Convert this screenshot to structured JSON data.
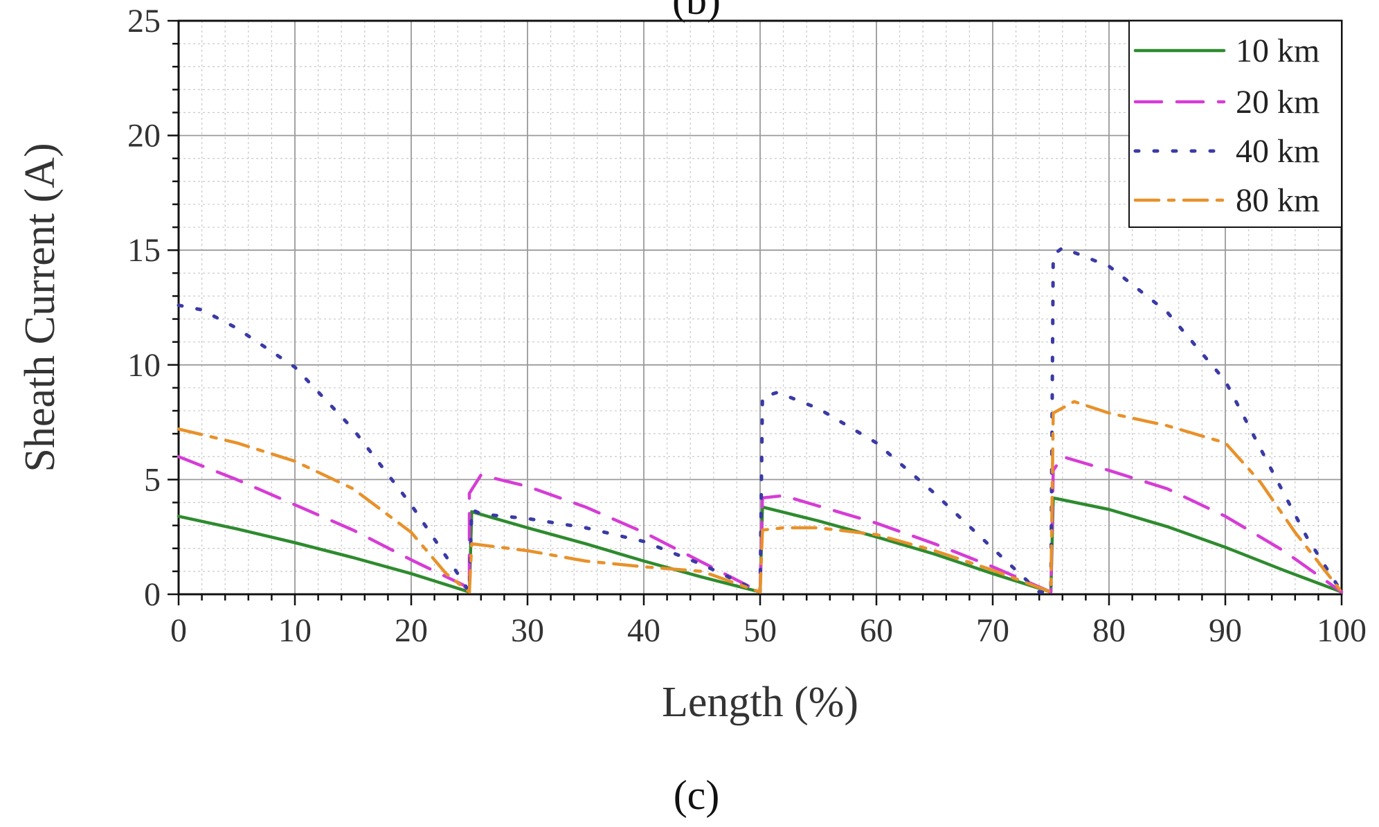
{
  "figure": {
    "caption": "(c)",
    "partial_top_label": "(b)"
  },
  "chart_data": {
    "type": "line",
    "title": "",
    "xlabel": "Length (%)",
    "ylabel": "Sheath Current (A)",
    "xlim": [
      0,
      100
    ],
    "ylim": [
      0,
      25
    ],
    "xticks": [
      0,
      10,
      20,
      30,
      40,
      50,
      60,
      70,
      80,
      90,
      100
    ],
    "yticks": [
      0,
      5,
      10,
      15,
      20,
      25
    ],
    "grid": true,
    "legend_position": "top-right",
    "series": [
      {
        "name": "10 km",
        "color": "#2e8b2e",
        "style": "solid",
        "x": [
          0,
          5,
          10,
          15,
          20,
          25,
          25,
          25.2,
          30,
          35,
          40,
          45,
          50,
          50,
          50.2,
          55,
          60,
          65,
          70,
          75,
          75,
          75.2,
          80,
          85,
          90,
          95,
          100
        ],
        "y": [
          3.4,
          2.85,
          2.25,
          1.6,
          0.9,
          0.1,
          0.1,
          3.6,
          2.9,
          2.2,
          1.45,
          0.75,
          0.1,
          0.1,
          3.8,
          3.2,
          2.5,
          1.75,
          0.9,
          0.1,
          0.1,
          4.2,
          3.7,
          2.95,
          2.05,
          1.05,
          0.1
        ]
      },
      {
        "name": "20 km",
        "color": "#d63cd6",
        "style": "dashed",
        "x": [
          0,
          5,
          10,
          15,
          20,
          24.5,
          25,
          25,
          26,
          30,
          35,
          40,
          45,
          50,
          50,
          50.2,
          52,
          55,
          60,
          65,
          70,
          75,
          75,
          75.2,
          76,
          80,
          85,
          90,
          95,
          100
        ],
        "y": [
          6.0,
          5.0,
          3.9,
          2.8,
          1.5,
          0.4,
          0.1,
          4.4,
          5.2,
          4.7,
          3.8,
          2.7,
          1.4,
          0.1,
          0.1,
          4.2,
          4.3,
          3.85,
          3.1,
          2.2,
          1.2,
          0.1,
          0.1,
          5.4,
          6.0,
          5.4,
          4.6,
          3.4,
          1.9,
          0.1
        ]
      },
      {
        "name": "40 km",
        "color": "#3a3aa6",
        "style": "dotted",
        "x": [
          0,
          2,
          5,
          10,
          15,
          20,
          24,
          25,
          25,
          25.2,
          26,
          30,
          35,
          40,
          45,
          50,
          50,
          50.2,
          51.5,
          55,
          60,
          65,
          70,
          74,
          75,
          75,
          75.2,
          76,
          80,
          85,
          90,
          94,
          97,
          100
        ],
        "y": [
          12.6,
          12.4,
          11.6,
          9.9,
          7.2,
          3.9,
          0.9,
          0.1,
          0.1,
          3.7,
          3.5,
          3.3,
          2.9,
          2.3,
          1.3,
          0.1,
          0.1,
          8.6,
          8.8,
          8.1,
          6.6,
          4.4,
          2.0,
          0.1,
          0.1,
          0.1,
          14.8,
          15.1,
          14.3,
          12.3,
          9.3,
          5.4,
          2.5,
          0.1
        ]
      },
      {
        "name": "80 km",
        "color": "#e8912a",
        "style": "dashdot",
        "x": [
          0,
          5,
          10,
          15,
          20,
          23,
          25,
          25,
          25.2,
          30,
          35,
          40,
          45,
          50,
          50,
          50.2,
          52,
          55,
          60,
          65,
          70,
          75,
          75,
          75.2,
          77,
          80,
          85,
          90,
          93,
          96,
          100
        ],
        "y": [
          7.2,
          6.6,
          5.8,
          4.6,
          2.7,
          0.9,
          0.1,
          0.1,
          2.2,
          1.9,
          1.45,
          1.2,
          1.0,
          0.1,
          0.1,
          2.8,
          2.9,
          2.9,
          2.6,
          1.9,
          1.05,
          0.1,
          0.1,
          7.9,
          8.4,
          7.9,
          7.35,
          6.6,
          4.9,
          2.7,
          0.1
        ]
      }
    ]
  }
}
